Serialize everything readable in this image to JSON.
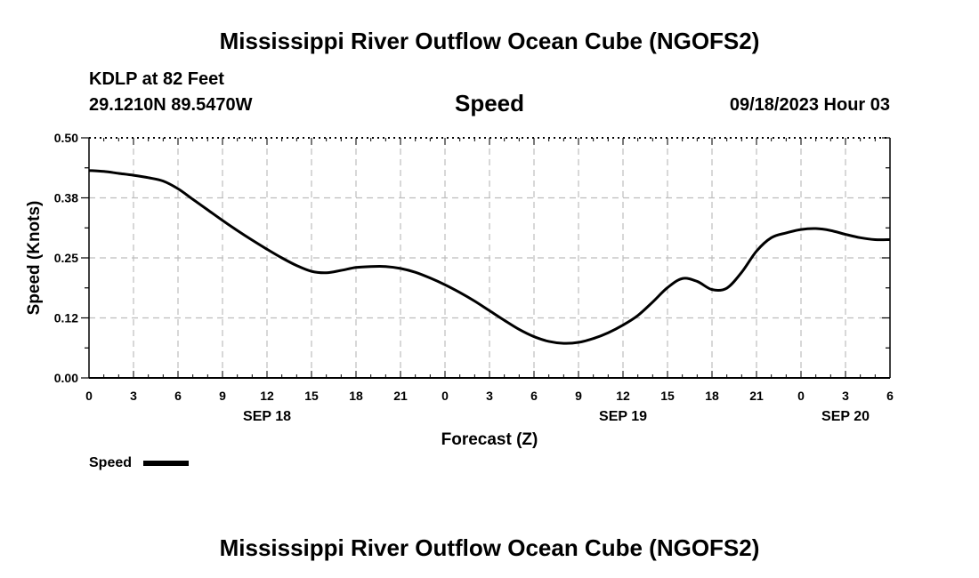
{
  "chart_data": {
    "type": "line",
    "title": "Mississippi River Outflow Ocean Cube (NGOFS2)",
    "footer_title": "Mississippi River Outflow Ocean Cube (NGOFS2)",
    "station": "KDLP at 82 Feet",
    "coords": "29.1210N  89.5470W",
    "subtitle": "Speed",
    "datetime": "09/18/2023 Hour 03",
    "ylabel": "Speed (Knots)",
    "xlabel": "Forecast (Z)",
    "ylim": [
      0,
      0.5
    ],
    "xlim": [
      0,
      54
    ],
    "yticks": [
      0.0,
      0.125,
      0.25,
      0.375,
      0.5
    ],
    "ytick_labels": [
      "0.00",
      "0.12",
      "0.25",
      "0.38",
      "0.50"
    ],
    "xticks": [
      0,
      3,
      6,
      9,
      12,
      15,
      18,
      21,
      24,
      27,
      30,
      33,
      36,
      39,
      42,
      45,
      48,
      51,
      54
    ],
    "xtick_labels": [
      "0",
      "3",
      "6",
      "9",
      "12",
      "15",
      "18",
      "21",
      "0",
      "3",
      "6",
      "9",
      "12",
      "15",
      "18",
      "21",
      "0",
      "3",
      "6"
    ],
    "date_labels": [
      {
        "x": 12,
        "label": "SEP 18"
      },
      {
        "x": 36,
        "label": "SEP 19"
      },
      {
        "x": 51,
        "label": "SEP 20"
      }
    ],
    "legend": [
      {
        "name": "Speed",
        "color": "#000000"
      }
    ],
    "grid": true,
    "series": [
      {
        "name": "Speed",
        "x": [
          0,
          1,
          2,
          3,
          4,
          5,
          6,
          7,
          8,
          9,
          10,
          11,
          12,
          13,
          14,
          15,
          16,
          17,
          18,
          19,
          20,
          21,
          22,
          23,
          24,
          25,
          26,
          27,
          28,
          29,
          30,
          31,
          32,
          33,
          34,
          35,
          36,
          37,
          38,
          39,
          40,
          41,
          42,
          43,
          44,
          45,
          46,
          47,
          48,
          49,
          50,
          51,
          52,
          53,
          54
        ],
        "values": [
          0.432,
          0.43,
          0.426,
          0.422,
          0.417,
          0.41,
          0.394,
          0.372,
          0.35,
          0.328,
          0.307,
          0.287,
          0.268,
          0.25,
          0.234,
          0.222,
          0.219,
          0.224,
          0.23,
          0.232,
          0.232,
          0.228,
          0.22,
          0.208,
          0.194,
          0.178,
          0.16,
          0.14,
          0.12,
          0.101,
          0.086,
          0.076,
          0.072,
          0.074,
          0.082,
          0.094,
          0.11,
          0.13,
          0.158,
          0.188,
          0.207,
          0.201,
          0.184,
          0.187,
          0.22,
          0.264,
          0.292,
          0.302,
          0.309,
          0.311,
          0.307,
          0.299,
          0.292,
          0.288,
          0.288
        ]
      }
    ]
  }
}
